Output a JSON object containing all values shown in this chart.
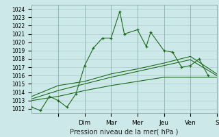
{
  "title": "",
  "xlabel": "Pression niveau de la mer( hPa )",
  "ylabel": "",
  "bg_color": "#cce8e8",
  "grid_color": "#aacccc",
  "line_color": "#1a6b1a",
  "ylim": [
    1011.5,
    1024.5
  ],
  "xlim": [
    0.0,
    7.0
  ],
  "yticks": [
    1012,
    1013,
    1014,
    1015,
    1016,
    1017,
    1018,
    1019,
    1020,
    1021,
    1022,
    1023,
    1024
  ],
  "xtick_labels": [
    "",
    "Dim",
    "Mar",
    "Mer",
    "Jeu",
    "Ven",
    "S"
  ],
  "xtick_positions": [
    1,
    2,
    3,
    4,
    5,
    6,
    7
  ],
  "series1_x": [
    0.0,
    0.33,
    0.67,
    1.0,
    1.33,
    1.67,
    2.0,
    2.33,
    2.67,
    3.0,
    3.33,
    3.5,
    4.0,
    4.33,
    4.5,
    5.0,
    5.33,
    5.67,
    6.0,
    6.33,
    6.67
  ],
  "series1_y": [
    1012.2,
    1011.8,
    1013.5,
    1013.0,
    1012.2,
    1013.8,
    1017.2,
    1019.3,
    1020.5,
    1020.5,
    1023.7,
    1021.0,
    1021.5,
    1019.5,
    1021.2,
    1019.0,
    1018.8,
    1017.0,
    1017.2,
    1018.0,
    1016.0
  ],
  "series2_x": [
    0.0,
    1.0,
    2.0,
    3.0,
    4.0,
    5.0,
    6.0,
    7.0
  ],
  "series2_y": [
    1013.2,
    1014.2,
    1015.0,
    1015.8,
    1016.5,
    1017.2,
    1017.9,
    1016.0
  ],
  "series3_x": [
    0.0,
    1.0,
    2.0,
    3.0,
    4.0,
    5.0,
    6.0,
    7.0
  ],
  "series3_y": [
    1013.5,
    1014.8,
    1015.3,
    1016.2,
    1016.8,
    1017.5,
    1018.3,
    1016.2
  ],
  "series4_x": [
    0.0,
    1.0,
    2.0,
    3.0,
    4.0,
    5.0,
    6.0,
    7.0
  ],
  "series4_y": [
    1013.0,
    1013.5,
    1014.2,
    1014.8,
    1015.3,
    1015.8,
    1015.8,
    1015.8
  ]
}
